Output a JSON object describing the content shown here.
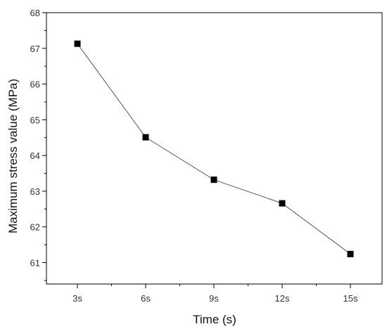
{
  "chart_data": {
    "type": "line",
    "xlabel": "Time (s)",
    "ylabel": "Maximum stress value (MPa)",
    "categories": [
      "3s",
      "6s",
      "9s",
      "12s",
      "15s"
    ],
    "series": [
      {
        "values": [
          67.13,
          64.51,
          63.32,
          62.66,
          61.24
        ],
        "marker": "square",
        "color": "#000000",
        "line_color": "#555555"
      }
    ],
    "ylim": [
      60.4,
      68
    ],
    "yticks": [
      61,
      62,
      63,
      64,
      65,
      66,
      67,
      68
    ],
    "grid": false,
    "legend": "none"
  }
}
